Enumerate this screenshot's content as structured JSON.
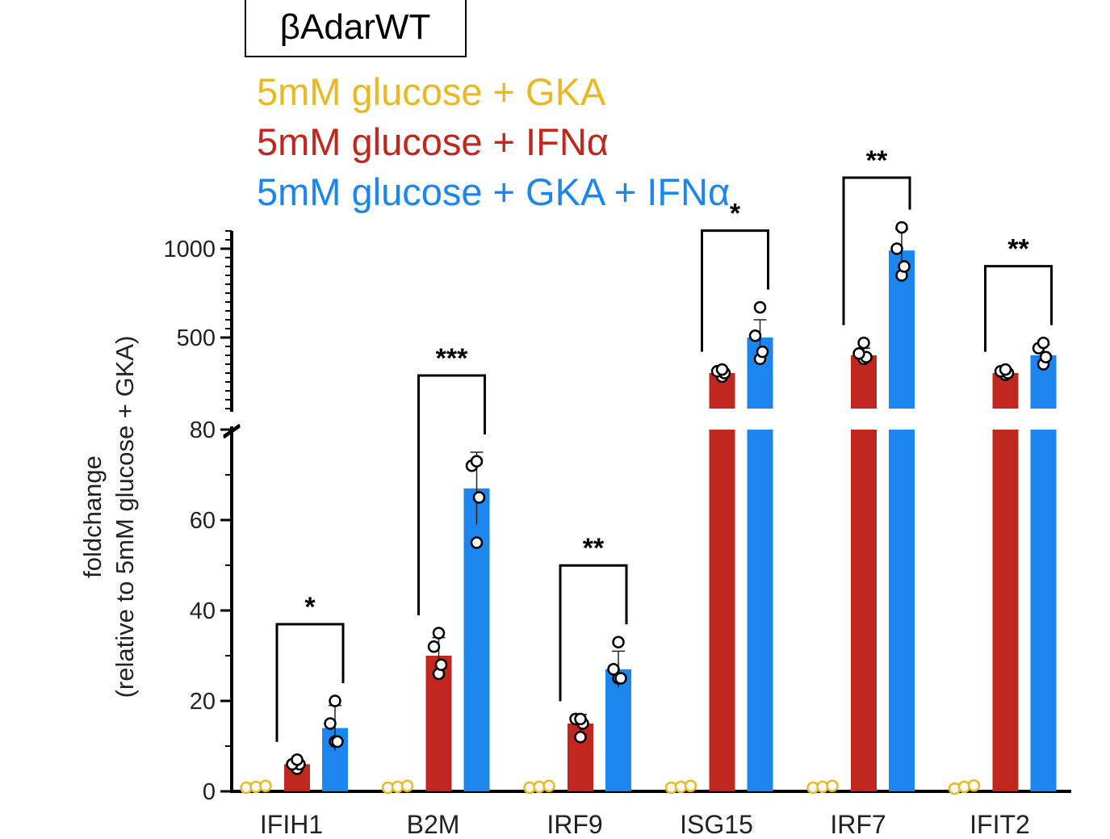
{
  "chart_data": {
    "type": "bar",
    "title": "βAdarWT",
    "ylabel_line1": "foldchange",
    "ylabel_line2": "(relative to 5mM glucose + GKA)",
    "xlabel": "",
    "categories": [
      "IFIH1",
      "B2M",
      "IRF9",
      "ISG15",
      "IRF7",
      "IFIT2"
    ],
    "y_axis": {
      "broken": true,
      "lower_segment": {
        "range": [
          0,
          80
        ],
        "ticks": [
          0,
          20,
          40,
          60,
          80
        ]
      },
      "upper_segment": {
        "range": [
          100,
          1100
        ],
        "ticks": [
          500,
          1000
        ]
      }
    },
    "series": [
      {
        "name": "5mM glucose + GKA",
        "color": "#E8B923",
        "values": [
          1,
          1,
          1,
          1,
          1,
          1
        ],
        "errors": [
          0,
          0,
          0,
          0,
          0,
          0
        ],
        "points": [
          [
            0.8,
            1.0,
            1.2
          ],
          [
            0.8,
            1.0,
            1.2
          ],
          [
            0.8,
            1.0,
            1.2
          ],
          [
            0.8,
            1.0,
            1.2
          ],
          [
            0.8,
            1.0,
            1.2
          ],
          [
            0.6,
            1.0,
            1.3
          ]
        ]
      },
      {
        "name": "5mM glucose + IFNα",
        "color": "#C0271F",
        "values": [
          6,
          30,
          15,
          300,
          400,
          300
        ],
        "errors": [
          1,
          4,
          2,
          20,
          40,
          20
        ],
        "points": [
          [
            5,
            6,
            6,
            7
          ],
          [
            26,
            28,
            32,
            35
          ],
          [
            12,
            15,
            16,
            16
          ],
          [
            280,
            300,
            310,
            320
          ],
          [
            380,
            390,
            410,
            470
          ],
          [
            290,
            300,
            310,
            320
          ]
        ]
      },
      {
        "name": "5mM glucose + GKA + IFNα",
        "color": "#1C86EE",
        "values": [
          14,
          67,
          27,
          500,
          990,
          400
        ],
        "errors": [
          5,
          8,
          4,
          100,
          120,
          60
        ],
        "points": [
          [
            11,
            11,
            15,
            20
          ],
          [
            55,
            65,
            72,
            73
          ],
          [
            25,
            25,
            27,
            33
          ],
          [
            380,
            420,
            510,
            670
          ],
          [
            850,
            900,
            1000,
            1120
          ],
          [
            350,
            390,
            440,
            470
          ]
        ]
      }
    ],
    "significance": [
      {
        "category": "IFIH1",
        "label": "*"
      },
      {
        "category": "B2M",
        "label": "***"
      },
      {
        "category": "IRF9",
        "label": "**"
      },
      {
        "category": "ISG15",
        "label": "*"
      },
      {
        "category": "IRF7",
        "label": "**"
      },
      {
        "category": "IFIT2",
        "label": "**"
      }
    ],
    "legend": {
      "placement": "top-left",
      "entries": [
        "5mM glucose + GKA",
        "5mM glucose + IFNα",
        "5mM glucose + GKA + IFNα"
      ]
    }
  }
}
